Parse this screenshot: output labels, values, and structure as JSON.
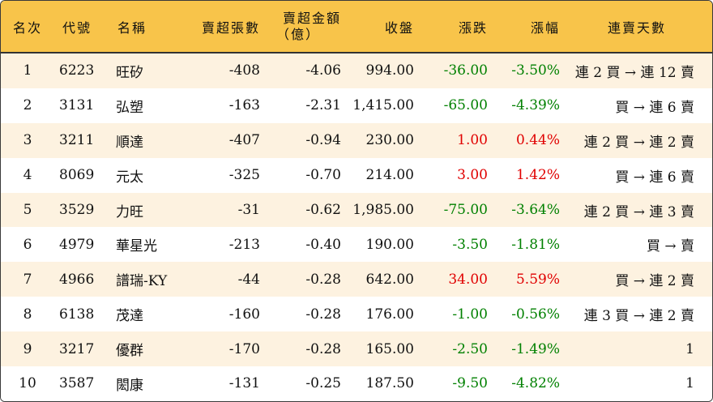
{
  "headers": {
    "rank": "名次",
    "code": "代號",
    "name": "名稱",
    "shares": "賣超張數",
    "amount_line1": "賣超金額",
    "amount_line2": "（億）",
    "close": "收盤",
    "change": "漲跌",
    "pct": "漲幅",
    "streak": "連賣天數"
  },
  "colors": {
    "header_bg": "#f8c44a",
    "odd_row_bg": "#fdf2e0",
    "even_row_bg": "#ffffff",
    "up": "#e00000",
    "down": "#008000"
  },
  "rows": [
    {
      "rank": "1",
      "code": "6223",
      "name": "旺矽",
      "shares": "-408",
      "amount": "-4.06",
      "close": "994.00",
      "change": "-36.00",
      "pct": "-3.50%",
      "dir": "down",
      "streak": "連 2 買 → 連 12 賣"
    },
    {
      "rank": "2",
      "code": "3131",
      "name": "弘塑",
      "shares": "-163",
      "amount": "-2.31",
      "close": "1,415.00",
      "change": "-65.00",
      "pct": "-4.39%",
      "dir": "down",
      "streak": "買 → 連 6 賣"
    },
    {
      "rank": "3",
      "code": "3211",
      "name": "順達",
      "shares": "-407",
      "amount": "-0.94",
      "close": "230.00",
      "change": "1.00",
      "pct": "0.44%",
      "dir": "up",
      "streak": "連 2 買 → 連 2 賣"
    },
    {
      "rank": "4",
      "code": "8069",
      "name": "元太",
      "shares": "-325",
      "amount": "-0.70",
      "close": "214.00",
      "change": "3.00",
      "pct": "1.42%",
      "dir": "up",
      "streak": "買 → 連 6 賣"
    },
    {
      "rank": "5",
      "code": "3529",
      "name": "力旺",
      "shares": "-31",
      "amount": "-0.62",
      "close": "1,985.00",
      "change": "-75.00",
      "pct": "-3.64%",
      "dir": "down",
      "streak": "連 2 買 → 連 3 賣"
    },
    {
      "rank": "6",
      "code": "4979",
      "name": "華星光",
      "shares": "-213",
      "amount": "-0.40",
      "close": "190.00",
      "change": "-3.50",
      "pct": "-1.81%",
      "dir": "down",
      "streak": "買 → 賣"
    },
    {
      "rank": "7",
      "code": "4966",
      "name": "譜瑞-KY",
      "shares": "-44",
      "amount": "-0.28",
      "close": "642.00",
      "change": "34.00",
      "pct": "5.59%",
      "dir": "up",
      "streak": "買 → 連 2 賣"
    },
    {
      "rank": "8",
      "code": "6138",
      "name": "茂達",
      "shares": "-160",
      "amount": "-0.28",
      "close": "176.00",
      "change": "-1.00",
      "pct": "-0.56%",
      "dir": "down",
      "streak": "連 3 買 → 連 2 賣"
    },
    {
      "rank": "9",
      "code": "3217",
      "name": "優群",
      "shares": "-170",
      "amount": "-0.28",
      "close": "165.00",
      "change": "-2.50",
      "pct": "-1.49%",
      "dir": "down",
      "streak": "1"
    },
    {
      "rank": "10",
      "code": "3587",
      "name": "閎康",
      "shares": "-131",
      "amount": "-0.25",
      "close": "187.50",
      "change": "-9.50",
      "pct": "-4.82%",
      "dir": "down",
      "streak": "1"
    }
  ]
}
